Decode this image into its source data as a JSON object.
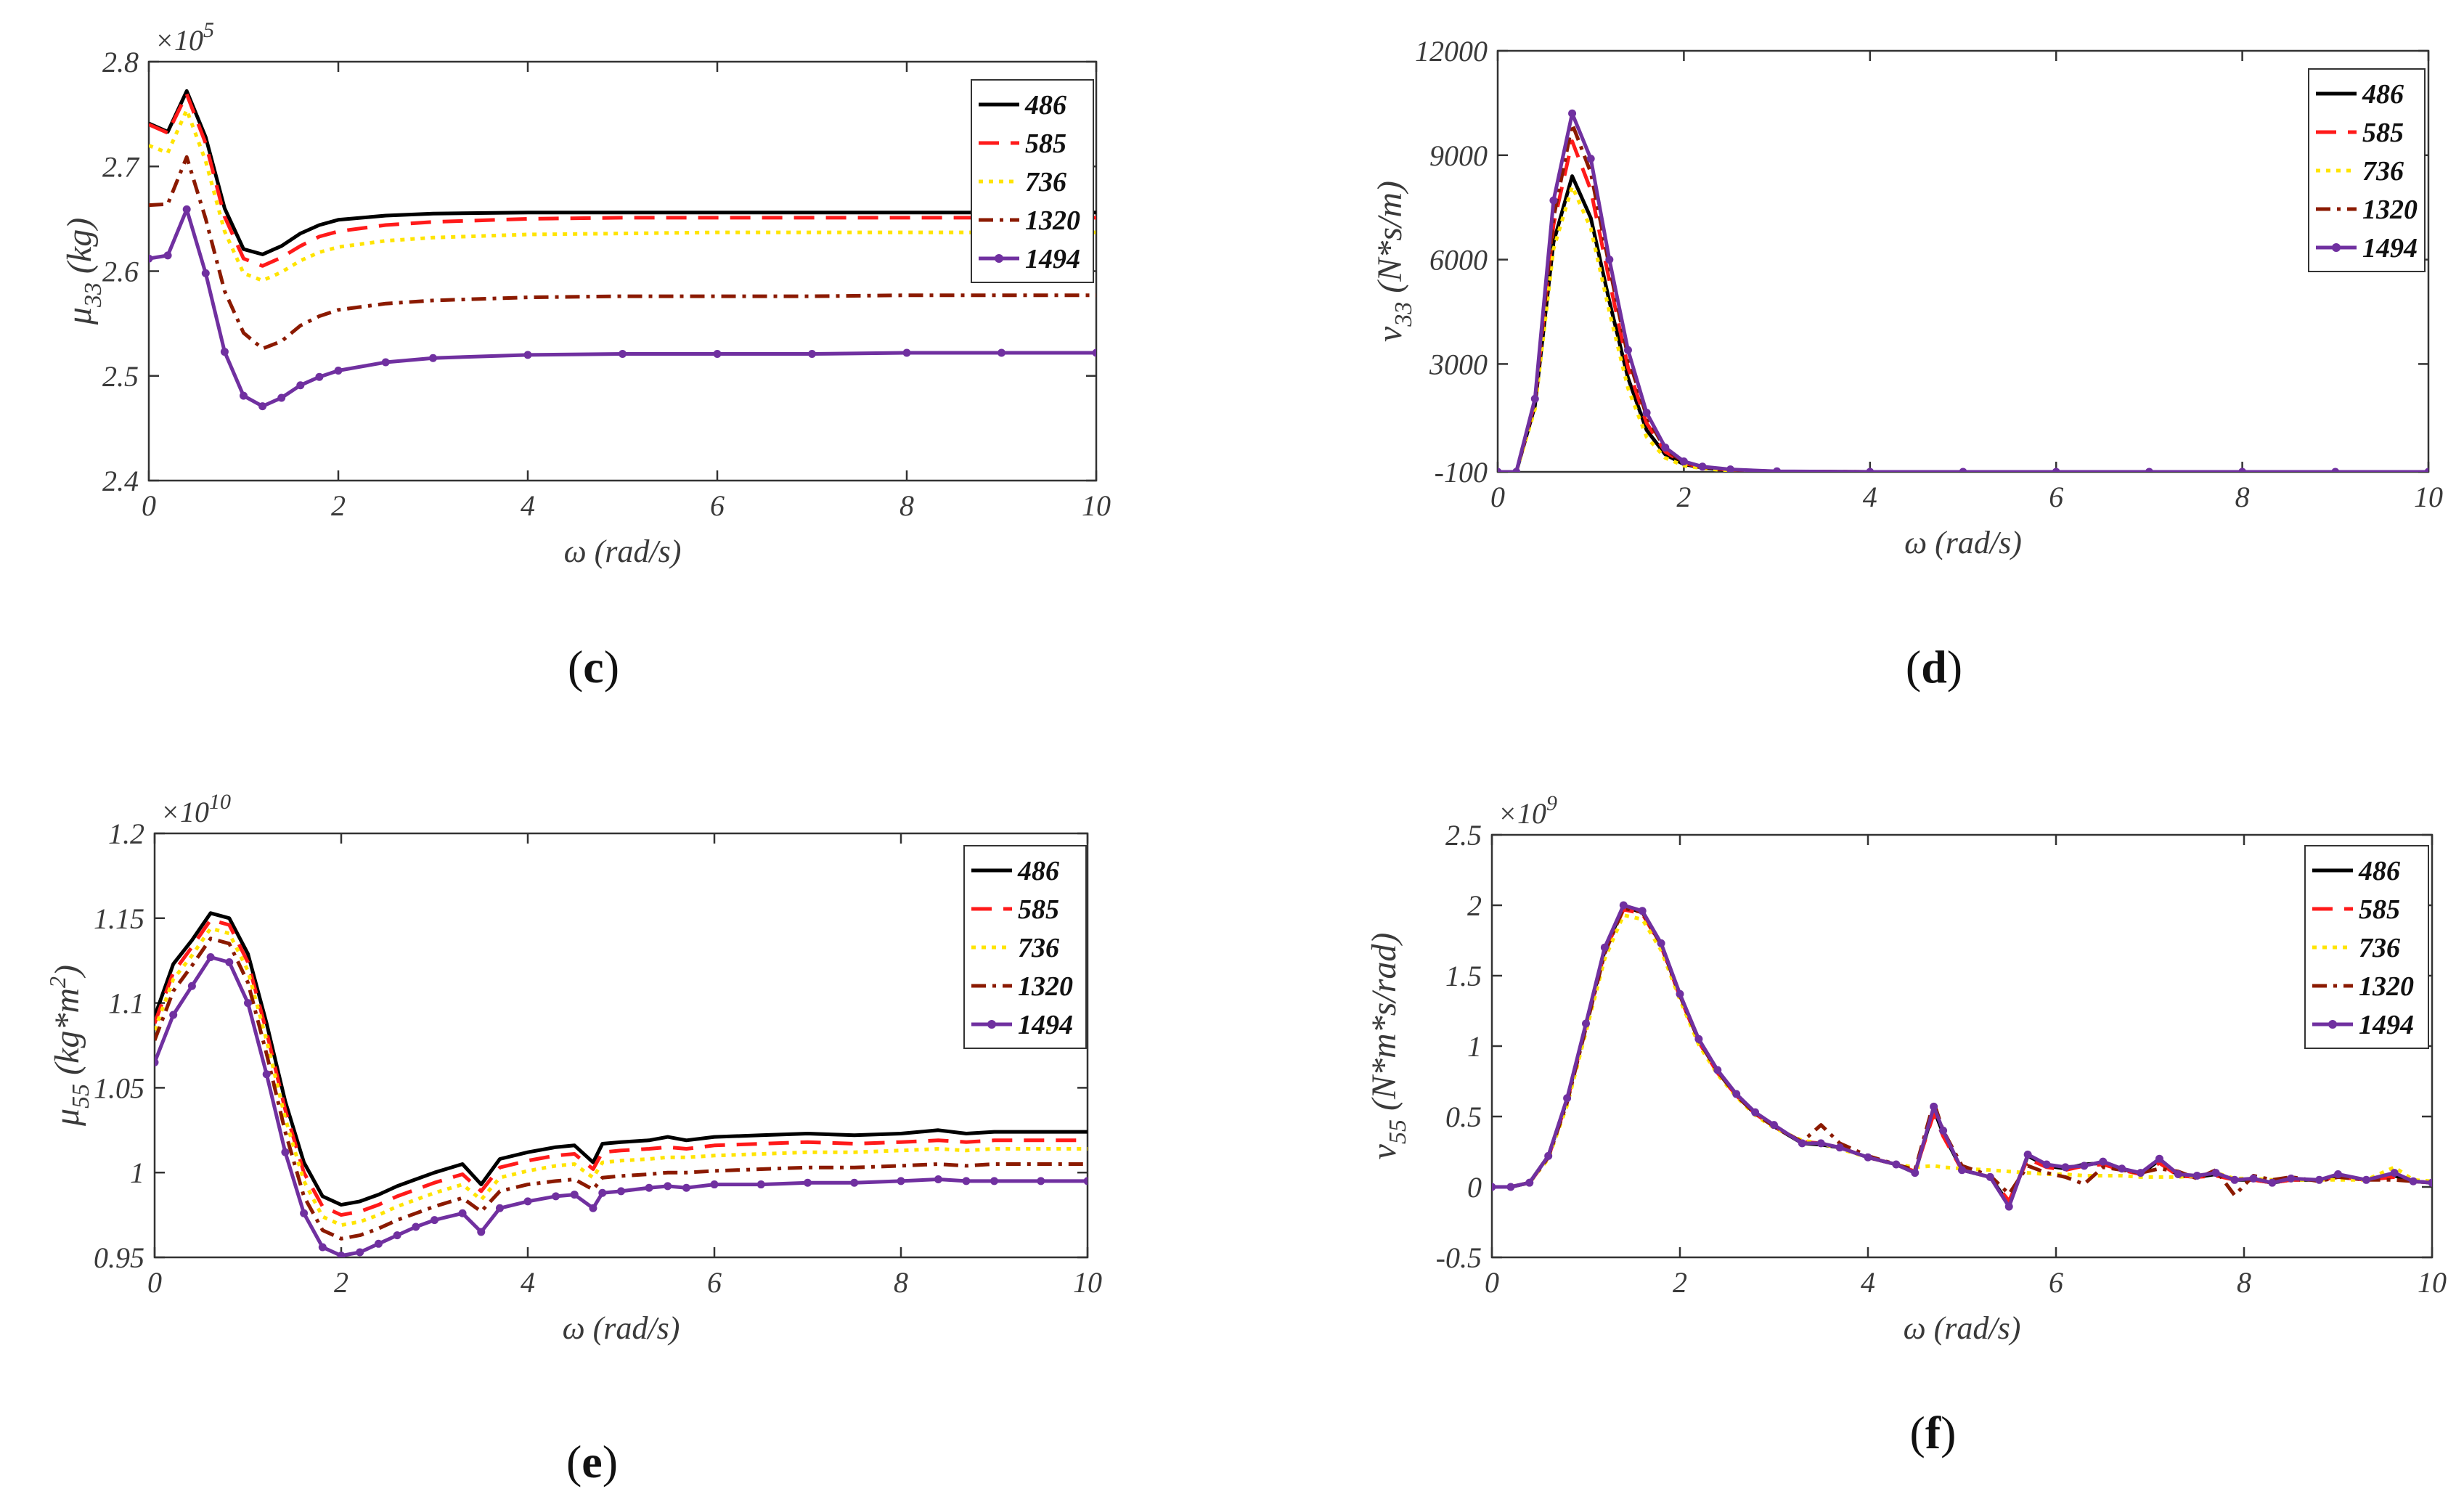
{
  "figure": {
    "series_styles": [
      {
        "name": "486",
        "color": "#000000",
        "dash": "",
        "marker": "none"
      },
      {
        "name": "585",
        "color": "#ff1a1a",
        "dash": "28,16",
        "marker": "none"
      },
      {
        "name": "736",
        "color": "#ffe400",
        "dash": "6,8",
        "marker": "none"
      },
      {
        "name": "1320",
        "color": "#8b1a00",
        "dash": "20,9,5,9",
        "marker": "none"
      },
      {
        "name": "1494",
        "color": "#7030a0",
        "dash": "",
        "marker": "dot"
      }
    ]
  },
  "chart_data": [
    {
      "id": "c",
      "panel_label_text": "c",
      "type": "line",
      "title": "",
      "xlabel": "ω (rad/s)",
      "ylabel": {
        "main": "μ",
        "sub": "33",
        "unit": " (kg)"
      },
      "multiplier": {
        "base": "×10",
        "exp": "5"
      },
      "xlim": [
        0,
        10
      ],
      "ylim": [
        2.4,
        2.8
      ],
      "xticks": [
        0,
        2,
        4,
        6,
        8,
        10
      ],
      "xticklabels": [
        "0",
        "2",
        "4",
        "6",
        "8",
        "10"
      ],
      "yticks": [
        2.4,
        2.5,
        2.6,
        2.7,
        2.8
      ],
      "yticklabels": [
        "2.4",
        "2.5",
        "2.6",
        "2.7",
        "2.8"
      ],
      "legend_position": "top-right",
      "x": [
        0,
        0.2,
        0.4,
        0.6,
        0.8,
        1.0,
        1.2,
        1.4,
        1.6,
        1.8,
        2.0,
        2.5,
        3.0,
        4.0,
        5.0,
        6.0,
        7.0,
        8.0,
        9.0,
        10.0
      ],
      "series": [
        {
          "name": "486",
          "values": [
            2.741,
            2.733,
            2.772,
            2.728,
            2.66,
            2.621,
            2.616,
            2.624,
            2.636,
            2.644,
            2.649,
            2.653,
            2.655,
            2.656,
            2.656,
            2.656,
            2.656,
            2.656,
            2.656,
            2.656
          ]
        },
        {
          "name": "585",
          "values": [
            2.74,
            2.732,
            2.769,
            2.722,
            2.652,
            2.612,
            2.605,
            2.613,
            2.624,
            2.633,
            2.638,
            2.644,
            2.647,
            2.65,
            2.651,
            2.651,
            2.651,
            2.651,
            2.651,
            2.651
          ]
        },
        {
          "name": "736",
          "values": [
            2.72,
            2.713,
            2.754,
            2.705,
            2.638,
            2.598,
            2.591,
            2.599,
            2.61,
            2.618,
            2.623,
            2.629,
            2.632,
            2.635,
            2.636,
            2.637,
            2.637,
            2.637,
            2.637,
            2.637
          ]
        },
        {
          "name": "1320",
          "values": [
            2.663,
            2.664,
            2.709,
            2.65,
            2.581,
            2.541,
            2.526,
            2.533,
            2.548,
            2.557,
            2.563,
            2.569,
            2.572,
            2.575,
            2.576,
            2.576,
            2.576,
            2.577,
            2.577,
            2.577
          ]
        },
        {
          "name": "1494",
          "values": [
            2.612,
            2.615,
            2.659,
            2.598,
            2.523,
            2.481,
            2.471,
            2.479,
            2.491,
            2.499,
            2.505,
            2.513,
            2.517,
            2.52,
            2.521,
            2.521,
            2.521,
            2.522,
            2.522,
            2.522
          ]
        }
      ]
    },
    {
      "id": "d",
      "panel_label_text": "d",
      "type": "line",
      "title": "",
      "xlabel": "ω (rad/s)",
      "ylabel": {
        "main": "ν",
        "sub": "33",
        "unit": " (N*s/m)"
      },
      "multiplier": null,
      "xlim": [
        0,
        10
      ],
      "ylim": [
        -100,
        12000
      ],
      "xticks": [
        0,
        2,
        4,
        6,
        8,
        10
      ],
      "xticklabels": [
        "0",
        "2",
        "4",
        "6",
        "8",
        "10"
      ],
      "yticks": [
        -100,
        3000,
        6000,
        9000,
        12000
      ],
      "yticklabels": [
        "-100",
        "3000",
        "6000",
        "9000",
        "12000"
      ],
      "legend_position": "top-right",
      "x": [
        0,
        0.2,
        0.4,
        0.6,
        0.8,
        1.0,
        1.2,
        1.4,
        1.6,
        1.8,
        2.0,
        2.2,
        2.5,
        3.0,
        4.0,
        5.0,
        6.0,
        7.0,
        8.0,
        9.0,
        10.0
      ],
      "series": [
        {
          "name": "486",
          "values": [
            -100,
            -100,
            1800,
            6500,
            8400,
            7200,
            4800,
            2600,
            1100,
            400,
            120,
            20,
            -60,
            -90,
            -100,
            -100,
            -100,
            -100,
            -100,
            -100,
            -100
          ]
        },
        {
          "name": "585",
          "values": [
            -100,
            -100,
            1900,
            7000,
            9400,
            8000,
            5400,
            2900,
            1300,
            480,
            150,
            30,
            -50,
            -90,
            -100,
            -100,
            -100,
            -100,
            -100,
            -100,
            -100
          ]
        },
        {
          "name": "736",
          "values": [
            -100,
            -100,
            1700,
            6300,
            8100,
            6900,
            4500,
            2300,
            900,
            300,
            80,
            0,
            -70,
            -95,
            -100,
            -100,
            -100,
            -100,
            -100,
            -100,
            -100
          ]
        },
        {
          "name": "1320",
          "values": [
            -100,
            -100,
            1950,
            7200,
            9900,
            8500,
            5800,
            3200,
            1500,
            550,
            180,
            40,
            -40,
            -90,
            -100,
            -100,
            -100,
            -100,
            -100,
            -100,
            -100
          ]
        },
        {
          "name": "1494",
          "values": [
            -100,
            -100,
            2000,
            7700,
            10200,
            8900,
            6000,
            3400,
            1600,
            600,
            200,
            50,
            -30,
            -85,
            -100,
            -100,
            -100,
            -100,
            -100,
            -100,
            -100
          ]
        }
      ]
    },
    {
      "id": "e",
      "panel_label_text": "e",
      "type": "line",
      "title": "",
      "xlabel": "ω (rad/s)",
      "ylabel": {
        "main": "μ",
        "sub": "55",
        "unit": " (kg*m",
        "sup": "2",
        "tail": ")"
      },
      "multiplier": {
        "base": "×10",
        "exp": "10"
      },
      "xlim": [
        0,
        10
      ],
      "ylim": [
        0.95,
        1.2
      ],
      "xticks": [
        0,
        2,
        4,
        6,
        8,
        10
      ],
      "xticklabels": [
        "0",
        "2",
        "4",
        "6",
        "8",
        "10"
      ],
      "yticks": [
        0.95,
        1,
        1.05,
        1.1,
        1.15,
        1.2
      ],
      "yticklabels": [
        "0.95",
        "1",
        "1.05",
        "1.1",
        "1.15",
        "1.2"
      ],
      "legend_position": "top-right",
      "x": [
        0,
        0.2,
        0.4,
        0.6,
        0.8,
        1.0,
        1.2,
        1.4,
        1.6,
        1.8,
        2.0,
        2.2,
        2.4,
        2.6,
        2.8,
        3.0,
        3.3,
        3.5,
        3.7,
        4.0,
        4.3,
        4.5,
        4.7,
        4.8,
        5.0,
        5.3,
        5.5,
        5.7,
        6.0,
        6.5,
        7.0,
        7.5,
        8.0,
        8.4,
        8.7,
        9.0,
        9.5,
        10.0
      ],
      "series": [
        {
          "name": "486",
          "values": [
            1.092,
            1.123,
            1.137,
            1.153,
            1.15,
            1.129,
            1.088,
            1.042,
            1.006,
            0.986,
            0.981,
            0.983,
            0.987,
            0.992,
            0.996,
            1.0,
            1.005,
            0.993,
            1.008,
            1.012,
            1.015,
            1.016,
            1.006,
            1.017,
            1.018,
            1.019,
            1.021,
            1.019,
            1.021,
            1.022,
            1.023,
            1.022,
            1.023,
            1.025,
            1.023,
            1.024,
            1.024,
            1.024
          ]
        },
        {
          "name": "585",
          "values": [
            1.088,
            1.118,
            1.133,
            1.149,
            1.146,
            1.124,
            1.083,
            1.037,
            1.0,
            0.98,
            0.975,
            0.977,
            0.981,
            0.986,
            0.99,
            0.994,
            0.999,
            0.989,
            1.003,
            1.007,
            1.01,
            1.011,
            1.002,
            1.012,
            1.013,
            1.014,
            1.015,
            1.014,
            1.016,
            1.017,
            1.018,
            1.017,
            1.018,
            1.019,
            1.018,
            1.019,
            1.019,
            1.019
          ]
        },
        {
          "name": "736",
          "values": [
            1.084,
            1.114,
            1.128,
            1.144,
            1.141,
            1.119,
            1.078,
            1.032,
            0.995,
            0.974,
            0.969,
            0.971,
            0.975,
            0.98,
            0.984,
            0.988,
            0.993,
            0.984,
            0.997,
            1.001,
            1.004,
            1.005,
            0.997,
            1.006,
            1.007,
            1.008,
            1.009,
            1.009,
            1.01,
            1.011,
            1.012,
            1.012,
            1.013,
            1.014,
            1.013,
            1.014,
            1.014,
            1.014
          ]
        },
        {
          "name": "1320",
          "values": [
            1.078,
            1.107,
            1.122,
            1.138,
            1.135,
            1.112,
            1.07,
            1.024,
            0.986,
            0.966,
            0.961,
            0.963,
            0.967,
            0.972,
            0.976,
            0.98,
            0.985,
            0.977,
            0.989,
            0.993,
            0.995,
            0.996,
            0.99,
            0.997,
            0.998,
            0.999,
            1.0,
            1.0,
            1.001,
            1.002,
            1.003,
            1.003,
            1.004,
            1.005,
            1.004,
            1.005,
            1.005,
            1.005
          ]
        },
        {
          "name": "1494",
          "values": [
            1.065,
            1.093,
            1.11,
            1.127,
            1.124,
            1.1,
            1.058,
            1.012,
            0.976,
            0.956,
            0.951,
            0.953,
            0.958,
            0.963,
            0.968,
            0.972,
            0.976,
            0.965,
            0.979,
            0.983,
            0.986,
            0.987,
            0.979,
            0.988,
            0.989,
            0.991,
            0.992,
            0.991,
            0.993,
            0.993,
            0.994,
            0.994,
            0.995,
            0.996,
            0.995,
            0.995,
            0.995,
            0.995
          ]
        }
      ]
    },
    {
      "id": "f",
      "panel_label_text": "f",
      "type": "line",
      "title": "",
      "xlabel": "ω (rad/s)",
      "ylabel": {
        "main": "ν",
        "sub": "55",
        "unit": " (N*m*s/rad)"
      },
      "multiplier": {
        "base": "×10",
        "exp": "9"
      },
      "xlim": [
        0,
        10
      ],
      "ylim": [
        -0.5,
        2.5
      ],
      "xticks": [
        0,
        2,
        4,
        6,
        8,
        10
      ],
      "xticklabels": [
        "0",
        "2",
        "4",
        "6",
        "8",
        "10"
      ],
      "yticks": [
        -0.5,
        0,
        0.5,
        1,
        1.5,
        2,
        2.5
      ],
      "yticklabels": [
        "-0.5",
        "0",
        "0.5",
        "1",
        "1.5",
        "2",
        "2.5"
      ],
      "legend_position": "top-right",
      "x": [
        0,
        0.2,
        0.4,
        0.6,
        0.8,
        1.0,
        1.2,
        1.4,
        1.6,
        1.8,
        2.0,
        2.2,
        2.4,
        2.6,
        2.8,
        3.0,
        3.3,
        3.5,
        3.7,
        4.0,
        4.3,
        4.5,
        4.7,
        4.8,
        5.0,
        5.3,
        5.5,
        5.7,
        5.9,
        6.1,
        6.3,
        6.5,
        6.7,
        6.9,
        7.1,
        7.3,
        7.5,
        7.7,
        7.9,
        8.1,
        8.3,
        8.5,
        8.8,
        9.0,
        9.3,
        9.6,
        9.8,
        10.0
      ],
      "series": [
        {
          "name": "486",
          "values": [
            0,
            0,
            0.03,
            0.22,
            0.62,
            1.15,
            1.68,
            1.99,
            1.95,
            1.72,
            1.36,
            1.04,
            0.82,
            0.65,
            0.52,
            0.43,
            0.31,
            0.3,
            0.28,
            0.21,
            0.16,
            0.1,
            0.55,
            0.38,
            0.12,
            0.07,
            -0.12,
            0.22,
            0.15,
            0.13,
            0.16,
            0.17,
            0.13,
            0.09,
            0.19,
            0.08,
            0.07,
            0.09,
            0.05,
            0.05,
            0.03,
            0.05,
            0.05,
            0.08,
            0.05,
            0.08,
            0.04,
            0.03
          ]
        },
        {
          "name": "585",
          "values": [
            0,
            0,
            0.03,
            0.21,
            0.61,
            1.14,
            1.67,
            1.97,
            1.94,
            1.71,
            1.35,
            1.03,
            0.81,
            0.65,
            0.52,
            0.43,
            0.32,
            0.31,
            0.28,
            0.21,
            0.16,
            0.11,
            0.52,
            0.36,
            0.12,
            0.07,
            -0.1,
            0.2,
            0.14,
            0.12,
            0.15,
            0.16,
            0.12,
            0.09,
            0.17,
            0.08,
            0.07,
            0.08,
            0.05,
            0.05,
            0.03,
            0.05,
            0.05,
            0.07,
            0.05,
            0.07,
            0.04,
            0.03
          ]
        },
        {
          "name": "736",
          "values": [
            0,
            0,
            0.03,
            0.2,
            0.58,
            1.1,
            1.62,
            1.93,
            1.9,
            1.68,
            1.33,
            1.01,
            0.8,
            0.64,
            0.51,
            0.42,
            0.33,
            0.31,
            0.27,
            0.21,
            0.16,
            0.14,
            0.15,
            0.14,
            0.13,
            0.12,
            0.11,
            0.1,
            0.09,
            0.09,
            0.08,
            0.08,
            0.08,
            0.07,
            0.07,
            0.07,
            0.08,
            0.1,
            0.06,
            0.06,
            0.05,
            0.05,
            0.05,
            0.05,
            0.05,
            0.14,
            0.05,
            0.04
          ]
        },
        {
          "name": "1320",
          "values": [
            0,
            0,
            0.03,
            0.21,
            0.6,
            1.13,
            1.66,
            1.98,
            1.95,
            1.72,
            1.36,
            1.04,
            0.82,
            0.65,
            0.52,
            0.43,
            0.32,
            0.44,
            0.31,
            0.22,
            0.16,
            0.12,
            0.6,
            0.4,
            0.15,
            0.08,
            -0.05,
            0.15,
            0.1,
            0.07,
            0.02,
            0.14,
            0.12,
            0.1,
            0.13,
            0.11,
            0.06,
            0.12,
            -0.06,
            0.08,
            0.05,
            0.07,
            0.04,
            0.07,
            0.05,
            0.05,
            0.04,
            0.03
          ]
        },
        {
          "name": "1494",
          "values": [
            0,
            0,
            0.03,
            0.22,
            0.63,
            1.16,
            1.7,
            2.0,
            1.96,
            1.73,
            1.37,
            1.05,
            0.83,
            0.66,
            0.53,
            0.44,
            0.31,
            0.31,
            0.28,
            0.21,
            0.16,
            0.1,
            0.57,
            0.4,
            0.12,
            0.07,
            -0.14,
            0.23,
            0.16,
            0.14,
            0.15,
            0.18,
            0.13,
            0.1,
            0.2,
            0.09,
            0.08,
            0.1,
            0.05,
            0.06,
            0.03,
            0.06,
            0.05,
            0.09,
            0.05,
            0.1,
            0.04,
            0.03
          ]
        }
      ]
    }
  ]
}
